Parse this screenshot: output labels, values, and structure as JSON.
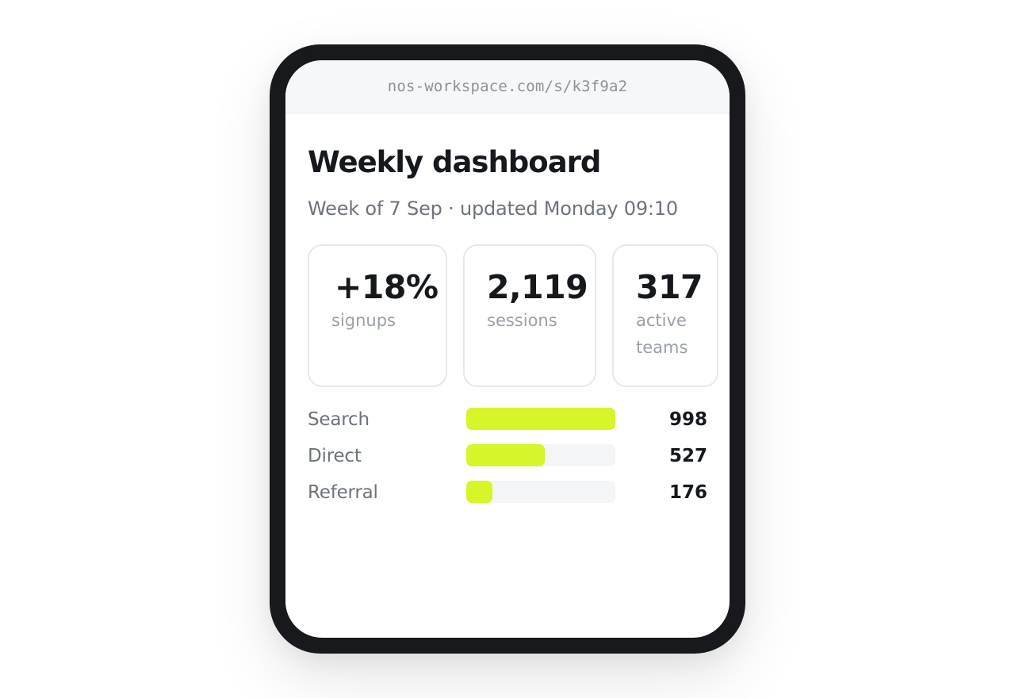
{
  "browser": {
    "url": "nos-workspace.com/s/k3f9a2"
  },
  "page": {
    "title": "Weekly dashboard",
    "subtitle": "Week of 7 Sep · updated Monday 09:10"
  },
  "stats": [
    {
      "value": "+18%",
      "label": "signups"
    },
    {
      "value": "2,119",
      "label": "sessions"
    },
    {
      "value": "317",
      "label": "active teams"
    }
  ],
  "sources": {
    "max": 998,
    "accent_color": "#d7f528",
    "track_color": "#f4f5f7",
    "items": [
      {
        "label": "Search",
        "value": 998,
        "display": "998"
      },
      {
        "label": "Direct",
        "value": 527,
        "display": "527"
      },
      {
        "label": "Referral",
        "value": 176,
        "display": "176"
      }
    ]
  }
}
